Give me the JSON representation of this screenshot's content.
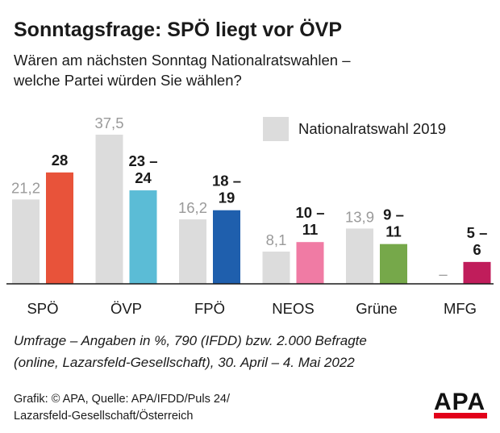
{
  "title": "Sonntagsfrage: SPÖ liegt vor ÖVP",
  "subtitle": [
    "Wären am nächsten Sonntag Nationalratswahlen –",
    "welche Partei würden Sie wählen?"
  ],
  "legend": {
    "label": "Nationalratswahl 2019",
    "color": "#dcdcdc"
  },
  "chart_data": {
    "type": "bar",
    "title": "Sonntagsfrage: SPÖ liegt vor ÖVP",
    "categories": [
      "SPÖ",
      "ÖVP",
      "FPÖ",
      "NEOS",
      "Grüne",
      "MFG"
    ],
    "series": [
      {
        "name": "Nationalratswahl 2019",
        "color": "#dcdcdc",
        "values": [
          21.2,
          37.5,
          16.2,
          8.1,
          13.9,
          null
        ],
        "labels": [
          "21,2",
          "37,5",
          "16,2",
          "8,1",
          "13,9",
          "–"
        ]
      },
      {
        "values": [
          28,
          23.5,
          18.5,
          10.5,
          10,
          5.5
        ],
        "labels": [
          [
            "28"
          ],
          [
            "23 –",
            "24"
          ],
          [
            "18 –",
            "19"
          ],
          [
            "10 –",
            "11"
          ],
          [
            "9 –",
            "11"
          ],
          [
            "5 –",
            "6"
          ]
        ],
        "colors": [
          "#e8533a",
          "#5bbcd6",
          "#1f5fad",
          "#f07ba4",
          "#76a84a",
          "#c01d5b"
        ]
      }
    ],
    "ylim": [
      0,
      37.5
    ],
    "grid": false,
    "legend_position": "top-right"
  },
  "note": [
    "Umfrage – Angaben in %, 790 (IFDD) bzw. 2.000 Befragte",
    "(online, Lazarsfeld-Gesellschaft), 30. April – 4. Mai 2022"
  ],
  "source": [
    "Grafik: © APA, Quelle: APA/IFDD/Puls 24/",
    "Lazarsfeld-Gesellschaft/Österreich"
  ],
  "logo": {
    "text": "APA",
    "accent": "#e2001a"
  }
}
